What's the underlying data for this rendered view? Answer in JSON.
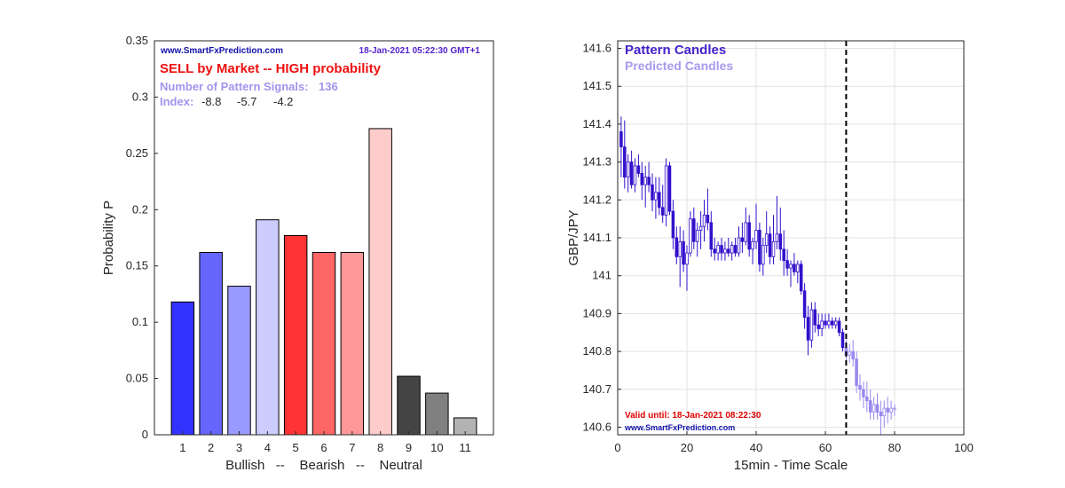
{
  "chart_data": [
    {
      "type": "bar",
      "categories": [
        "1",
        "2",
        "3",
        "4",
        "5",
        "6",
        "7",
        "8",
        "9",
        "10",
        "11"
      ],
      "values": [
        0.118,
        0.162,
        0.132,
        0.191,
        0.177,
        0.162,
        0.162,
        0.272,
        0.052,
        0.037,
        0.015
      ],
      "colors": [
        "#3333ff",
        "#6666ff",
        "#9999ff",
        "#ccccff",
        "#ff3333",
        "#ff6666",
        "#ff9999",
        "#ffcccc",
        "#444444",
        "#808080",
        "#b3b3b3"
      ],
      "ylim": [
        0,
        0.35
      ],
      "yticks": [
        "0",
        "0.05",
        "0.1",
        "0.15",
        "0.2",
        "0.25",
        "0.3",
        "0.35"
      ],
      "ylabel": "Probability P",
      "xlabel": "Bullish   --    Bearish   --    Neutral",
      "grid": false,
      "annotations": {
        "site": "www.SmartFxPrediction.com",
        "timestamp": "18-Jan-2021 05:22:30 GMT+1",
        "signal": "SELL by Market -- HIGH probability",
        "pattern_signals_label": "Number of Pattern Signals:",
        "pattern_signals_value": "136",
        "index_label": "Index:",
        "index_values": [
          "-8.8",
          "-5.7",
          "-4.2"
        ]
      }
    },
    {
      "type": "candlestick",
      "xlim": [
        0,
        100
      ],
      "ylim": [
        140.58,
        141.62
      ],
      "xticks": [
        "0",
        "20",
        "40",
        "60",
        "80",
        "100"
      ],
      "yticks": [
        "140.6",
        "140.7",
        "140.8",
        "140.9",
        "141",
        "141.1",
        "141.2",
        "141.3",
        "141.4",
        "141.5",
        "141.6"
      ],
      "xlabel": "15min - Time Scale",
      "ylabel": "GBP/JPY",
      "grid": true,
      "divider_x": 66,
      "series": [
        {
          "name": "Pattern Candles",
          "color": "#3311cc",
          "ohlc": [
            [
              1,
              141.38,
              141.42,
              141.26,
              141.34
            ],
            [
              2,
              141.34,
              141.41,
              141.23,
              141.26
            ],
            [
              3,
              141.26,
              141.32,
              141.22,
              141.3
            ],
            [
              4,
              141.3,
              141.33,
              141.23,
              141.24
            ],
            [
              5,
              141.24,
              141.31,
              141.22,
              141.29
            ],
            [
              6,
              141.29,
              141.32,
              141.26,
              141.27
            ],
            [
              7,
              141.27,
              141.3,
              141.2,
              141.24
            ],
            [
              8,
              141.24,
              141.29,
              141.18,
              141.26
            ],
            [
              9,
              141.26,
              141.3,
              141.22,
              141.24
            ],
            [
              10,
              141.24,
              141.27,
              141.17,
              141.2
            ],
            [
              11,
              141.2,
              141.26,
              141.15,
              141.22
            ],
            [
              12,
              141.22,
              141.26,
              141.16,
              141.18
            ],
            [
              13,
              141.18,
              141.24,
              141.14,
              141.16
            ],
            [
              14,
              141.16,
              141.31,
              141.13,
              141.29
            ],
            [
              15,
              141.29,
              141.3,
              141.16,
              141.17
            ],
            [
              16,
              141.17,
              141.2,
              141.07,
              141.1
            ],
            [
              17,
              141.1,
              141.13,
              141.03,
              141.05
            ],
            [
              18,
              141.05,
              141.13,
              140.97,
              141.09
            ],
            [
              19,
              141.09,
              141.12,
              141.01,
              141.03
            ],
            [
              20,
              141.03,
              141.08,
              140.96,
              141.06
            ],
            [
              21,
              141.06,
              141.17,
              141.05,
              141.15
            ],
            [
              22,
              141.15,
              141.18,
              141.07,
              141.09
            ],
            [
              23,
              141.09,
              141.14,
              141.05,
              141.12
            ],
            [
              24,
              141.12,
              141.17,
              141.07,
              141.13
            ],
            [
              25,
              141.13,
              141.2,
              141.09,
              141.16
            ],
            [
              26,
              141.16,
              141.23,
              141.12,
              141.14
            ],
            [
              27,
              141.14,
              141.17,
              141.05,
              141.07
            ],
            [
              28,
              141.07,
              141.1,
              141.04,
              141.06
            ],
            [
              29,
              141.06,
              141.09,
              141.04,
              141.08
            ],
            [
              30,
              141.08,
              141.1,
              141.04,
              141.06
            ],
            [
              31,
              141.06,
              141.09,
              141.04,
              141.07
            ],
            [
              32,
              141.07,
              141.1,
              141.05,
              141.06
            ],
            [
              33,
              141.06,
              141.09,
              141.04,
              141.08
            ],
            [
              34,
              141.08,
              141.1,
              141.05,
              141.06
            ],
            [
              35,
              141.06,
              141.13,
              141.05,
              141.1
            ],
            [
              36,
              141.1,
              141.14,
              141.06,
              141.09
            ],
            [
              37,
              141.09,
              141.18,
              141.08,
              141.14
            ],
            [
              38,
              141.14,
              141.16,
              141.05,
              141.07
            ],
            [
              39,
              141.07,
              141.1,
              141.03,
              141.09
            ],
            [
              40,
              141.09,
              141.19,
              141.07,
              141.12
            ],
            [
              41,
              141.12,
              141.14,
              141.01,
              141.03
            ],
            [
              42,
              141.03,
              141.1,
              141.0,
              141.08
            ],
            [
              43,
              141.08,
              141.17,
              141.06,
              141.11
            ],
            [
              44,
              141.11,
              141.13,
              141.03,
              141.05
            ],
            [
              45,
              141.05,
              141.16,
              141.03,
              141.09
            ],
            [
              46,
              141.09,
              141.21,
              141.07,
              141.11
            ],
            [
              47,
              141.11,
              141.18,
              141.04,
              141.07
            ],
            [
              48,
              141.07,
              141.12,
              141.0,
              141.04
            ],
            [
              49,
              141.04,
              141.07,
              141.0,
              141.02
            ],
            [
              50,
              141.02,
              141.04,
              140.97,
              141.03
            ],
            [
              51,
              141.03,
              141.06,
              141.0,
              141.01
            ],
            [
              52,
              141.01,
              141.04,
              140.98,
              141.03
            ],
            [
              53,
              141.03,
              141.04,
              140.95,
              140.96
            ],
            [
              54,
              140.96,
              140.98,
              140.86,
              140.89
            ],
            [
              55,
              140.89,
              140.92,
              140.79,
              140.83
            ],
            [
              56,
              140.83,
              140.93,
              140.81,
              140.91
            ],
            [
              57,
              140.91,
              140.93,
              140.85,
              140.87
            ],
            [
              58,
              140.87,
              140.9,
              140.84,
              140.86
            ],
            [
              59,
              140.86,
              140.9,
              140.84,
              140.88
            ],
            [
              60,
              140.88,
              140.9,
              140.86,
              140.87
            ],
            [
              61,
              140.87,
              140.9,
              140.86,
              140.88
            ],
            [
              62,
              140.88,
              140.89,
              140.86,
              140.87
            ],
            [
              63,
              140.87,
              140.89,
              140.86,
              140.88
            ],
            [
              64,
              140.88,
              140.89,
              140.84,
              140.85
            ],
            [
              65,
              140.85,
              140.86,
              140.8,
              140.81
            ]
          ]
        },
        {
          "name": "Predicted Candles",
          "color": "#9988ee",
          "ohlc": [
            [
              66,
              140.81,
              140.83,
              140.77,
              140.79
            ],
            [
              67,
              140.79,
              140.82,
              140.77,
              140.8
            ],
            [
              68,
              140.8,
              140.83,
              140.76,
              140.78
            ],
            [
              69,
              140.78,
              140.8,
              140.69,
              140.71
            ],
            [
              70,
              140.71,
              140.74,
              140.67,
              140.7
            ],
            [
              71,
              140.7,
              140.72,
              140.65,
              140.68
            ],
            [
              72,
              140.68,
              140.72,
              140.64,
              140.67
            ],
            [
              73,
              140.67,
              140.7,
              140.62,
              140.64
            ],
            [
              74,
              140.64,
              140.68,
              140.62,
              140.66
            ],
            [
              75,
              140.66,
              140.69,
              140.62,
              140.64
            ],
            [
              76,
              140.64,
              140.67,
              140.58,
              140.63
            ],
            [
              77,
              140.63,
              140.67,
              140.6,
              140.65
            ],
            [
              78,
              140.65,
              140.68,
              140.61,
              140.64
            ],
            [
              79,
              140.64,
              140.67,
              140.62,
              140.65
            ],
            [
              80,
              140.65,
              140.66,
              140.63,
              140.65
            ]
          ]
        }
      ],
      "annotations": {
        "valid_until": "Valid until: 18-Jan-2021 08:22:30",
        "site": "www.SmartFxPrediction.com"
      }
    }
  ],
  "colors": {
    "signal_red": "#ee1111",
    "site_blue": "#1111aa",
    "timestamp_purple": "#5522cc",
    "label_lavender": "#9f95ee",
    "pattern_legend": "#4422cc",
    "predicted_legend": "#aa99ee",
    "valid_red": "#dd0000",
    "divider": "#000000"
  }
}
